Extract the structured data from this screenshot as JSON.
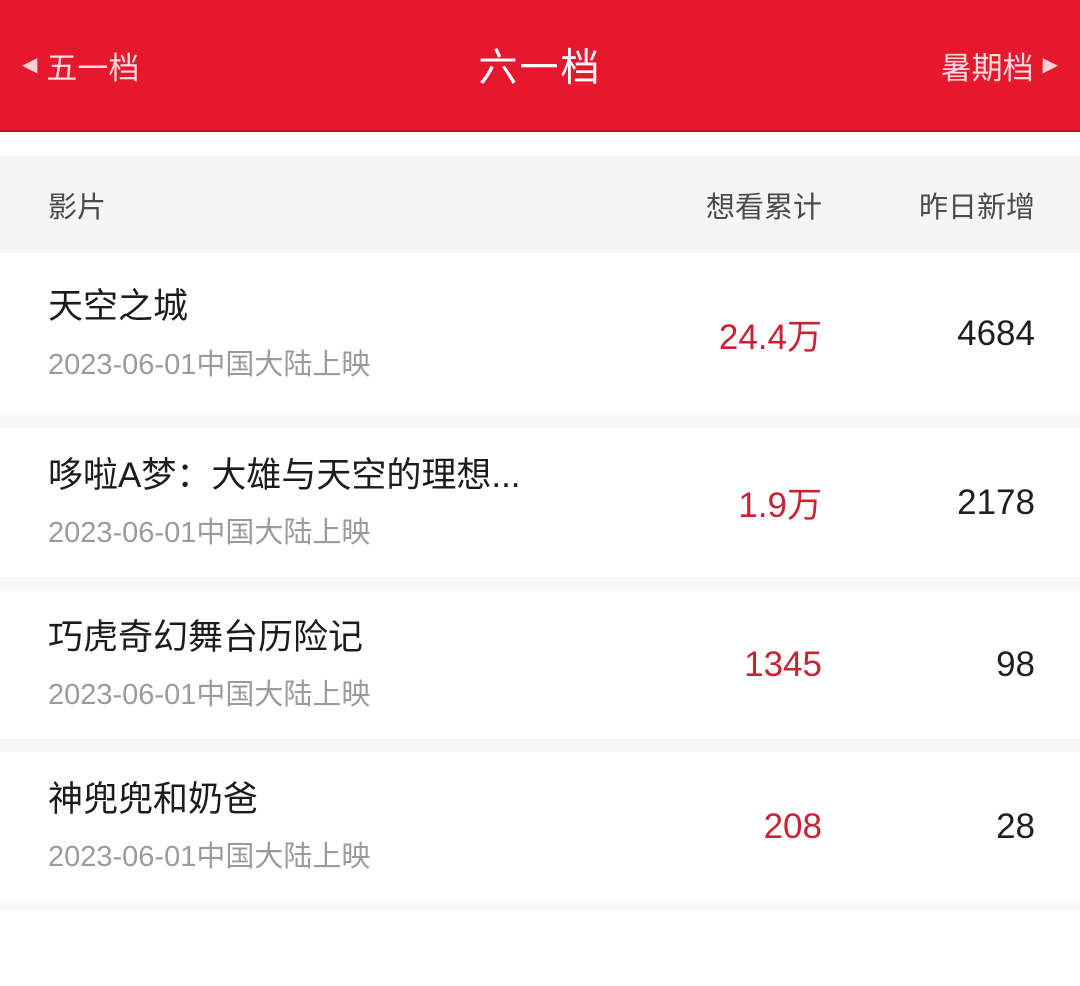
{
  "nav": {
    "prev": {
      "label": "五一档",
      "arrow": "◀"
    },
    "current": {
      "label": "六一档"
    },
    "next": {
      "label": "暑期档",
      "arrow": "▶"
    }
  },
  "table": {
    "headers": {
      "film": "影片",
      "cumulative": "想看累计",
      "new_yesterday": "昨日新增"
    },
    "rows": [
      {
        "title": "天空之城",
        "subtitle": "2023-06-01中国大陆上映",
        "cumulative": "24.4万",
        "new_yesterday": "4684"
      },
      {
        "title": "哆啦A梦：大雄与天空的理想...",
        "subtitle": "2023-06-01中国大陆上映",
        "cumulative": "1.9万",
        "new_yesterday": "2178"
      },
      {
        "title": "巧虎奇幻舞台历险记",
        "subtitle": "2023-06-01中国大陆上映",
        "cumulative": "1345",
        "new_yesterday": "98"
      },
      {
        "title": "神兜兜和奶爸",
        "subtitle": "2023-06-01中国大陆上映",
        "cumulative": "208",
        "new_yesterday": "28"
      }
    ]
  },
  "colors": {
    "accent": "#e7182d",
    "accent_dark": "#c40f22",
    "value_red": "#cb2233",
    "header_bg": "#f5f5f6"
  }
}
